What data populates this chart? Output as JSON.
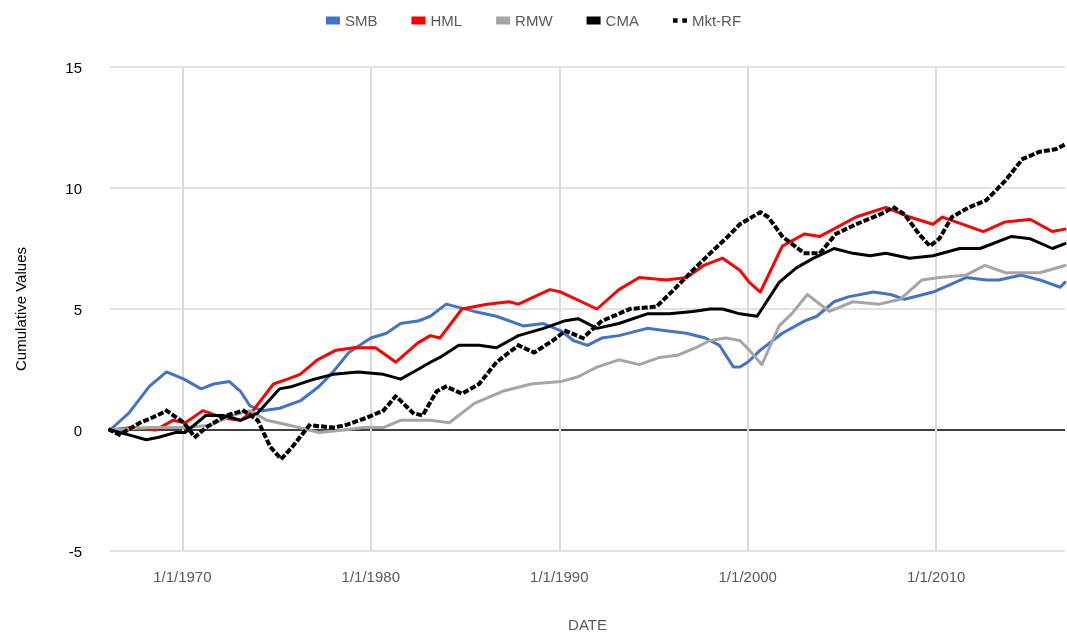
{
  "chart_data": {
    "type": "line",
    "xlabel": "DATE",
    "ylabel": "Cumulative Values",
    "xlim": [
      "1966-03",
      "2016-11"
    ],
    "xticks": [
      {
        "value": "1970-01-01",
        "label": "1/1/1970"
      },
      {
        "value": "1980-01-01",
        "label": "1/1/1980"
      },
      {
        "value": "1990-01-01",
        "label": "1/1/1990"
      },
      {
        "value": "2000-01-01",
        "label": "1/1/2000"
      },
      {
        "value": "2010-01-01",
        "label": "1/1/2010"
      }
    ],
    "ylim": [
      -5,
      15
    ],
    "yticks": [
      -5,
      0,
      5,
      10,
      15
    ],
    "grid": true,
    "legend": "top",
    "marker": "none",
    "series": [
      {
        "name": "SMB",
        "color": "#4472c4",
        "line_style": "solid",
        "x": [
          "1966-03",
          "1967-03",
          "1968-04",
          "1969-03",
          "1970-02",
          "1971-01",
          "1971-09",
          "1972-07",
          "1973-02",
          "1973-08",
          "1974-04",
          "1975-03",
          "1976-04",
          "1977-04",
          "1978-01",
          "1978-11",
          "1980-01",
          "1980-11",
          "1981-08",
          "1982-07",
          "1983-03",
          "1984-01",
          "1985-07",
          "1986-09",
          "1988-02",
          "1989-03",
          "1990-02",
          "1990-10",
          "1991-07",
          "1992-04",
          "1993-03",
          "1994-09",
          "1995-09",
          "1996-10",
          "1997-10",
          "1998-07",
          "1999-04",
          "1999-08",
          "2000-01",
          "2000-09",
          "2001-11",
          "2003-01",
          "2003-09",
          "2004-08",
          "2005-05",
          "2006-09",
          "2007-08",
          "2008-05",
          "2009-11",
          "2011-08",
          "2012-09",
          "2013-05",
          "2014-07",
          "2015-07",
          "2016-08",
          "2016-11"
        ],
        "values": [
          0,
          0.7,
          1.8,
          2.4,
          2.1,
          1.7,
          1.9,
          2.0,
          1.6,
          1.0,
          0.8,
          0.9,
          1.2,
          1.8,
          2.4,
          3.2,
          3.8,
          4.0,
          4.4,
          4.5,
          4.7,
          5.2,
          4.9,
          4.7,
          4.3,
          4.4,
          4.1,
          3.7,
          3.5,
          3.8,
          3.9,
          4.2,
          4.1,
          4.0,
          3.8,
          3.5,
          2.6,
          2.6,
          2.8,
          3.3,
          4.0,
          4.5,
          4.7,
          5.3,
          5.5,
          5.7,
          5.6,
          5.4,
          5.7,
          6.3,
          6.2,
          6.2,
          6.4,
          6.2,
          5.9,
          6.1
        ]
      },
      {
        "name": "HML",
        "color": "#ff0000",
        "line_style": "solid",
        "x": [
          "1966-03",
          "1967-05",
          "1968-08",
          "1969-07",
          "1970-03",
          "1971-02",
          "1972-03",
          "1973-02",
          "1973-10",
          "1974-11",
          "1975-08",
          "1976-04",
          "1977-03",
          "1978-03",
          "1979-02",
          "1980-04",
          "1981-05",
          "1982-07",
          "1983-03",
          "1983-09",
          "1984-11",
          "1986-03",
          "1987-05",
          "1987-11",
          "1989-07",
          "1990-02",
          "1992-01",
          "1993-03",
          "1994-04",
          "1995-09",
          "1996-10",
          "1997-09",
          "1998-09",
          "1999-08",
          "2000-02",
          "2000-09",
          "2001-11",
          "2003-01",
          "2003-11",
          "2005-10",
          "2007-05",
          "2008-08",
          "2009-11",
          "2010-05",
          "2012-07",
          "2013-09",
          "2015-01",
          "2016-03",
          "2016-11"
        ],
        "values": [
          0,
          0.1,
          0,
          0.4,
          0.3,
          0.8,
          0.5,
          0.4,
          0.8,
          1.9,
          2.1,
          2.3,
          2.9,
          3.3,
          3.4,
          3.4,
          2.8,
          3.6,
          3.9,
          3.8,
          5.0,
          5.2,
          5.3,
          5.2,
          5.8,
          5.7,
          5.0,
          5.8,
          6.3,
          6.2,
          6.3,
          6.8,
          7.1,
          6.6,
          6.1,
          5.7,
          7.6,
          8.1,
          8.0,
          8.8,
          9.2,
          8.8,
          8.5,
          8.8,
          8.2,
          8.6,
          8.7,
          8.2,
          8.3
        ]
      },
      {
        "name": "RMW",
        "color": "#a5a5a5",
        "line_style": "solid",
        "x": [
          "1966-03",
          "1968-04",
          "1970-02",
          "1971-07",
          "1972-09",
          "1973-08",
          "1974-07",
          "1975-09",
          "1977-04",
          "1978-08",
          "1979-08",
          "1980-09",
          "1981-08",
          "1983-03",
          "1984-03",
          "1985-07",
          "1987-01",
          "1988-07",
          "1990-02",
          "1991-01",
          "1992-01",
          "1993-03",
          "1994-04",
          "1995-05",
          "1996-05",
          "1997-04",
          "1998-01",
          "1998-11",
          "1999-08",
          "2000-02",
          "2000-10",
          "2001-09",
          "2002-05",
          "2003-03",
          "2004-05",
          "2005-08",
          "2007-01",
          "2008-02",
          "2009-04",
          "2010-03",
          "2011-08",
          "2012-08",
          "2013-09",
          "2015-07",
          "2016-11"
        ],
        "values": [
          0,
          0.1,
          0.1,
          0.2,
          0.6,
          0.8,
          0.4,
          0.2,
          -0.1,
          0,
          0.1,
          0.1,
          0.4,
          0.4,
          0.3,
          1.1,
          1.6,
          1.9,
          2.0,
          2.2,
          2.6,
          2.9,
          2.7,
          3.0,
          3.1,
          3.4,
          3.7,
          3.8,
          3.7,
          3.3,
          2.7,
          4.3,
          4.8,
          5.6,
          4.9,
          5.3,
          5.2,
          5.4,
          6.2,
          6.3,
          6.4,
          6.8,
          6.5,
          6.5,
          6.8
        ]
      },
      {
        "name": "CMA",
        "color": "#000000",
        "line_style": "solid",
        "x": [
          "1966-03",
          "1967-03",
          "1968-02",
          "1968-10",
          "1969-09",
          "1970-03",
          "1971-04",
          "1972-03",
          "1973-02",
          "1974-01",
          "1975-03",
          "1975-11",
          "1977-01",
          "1978-01",
          "1979-05",
          "1980-09",
          "1981-08",
          "1982-07",
          "1983-03",
          "1983-09",
          "1984-09",
          "1985-10",
          "1986-09",
          "1987-11",
          "1989-03",
          "1990-04",
          "1991-01",
          "1992-01",
          "1993-03",
          "1994-09",
          "1995-11",
          "1997-02",
          "1998-01",
          "1998-09",
          "1999-08",
          "2000-07",
          "2001-09",
          "2002-08",
          "2003-07",
          "2004-08",
          "2005-08",
          "2006-07",
          "2007-05",
          "2008-08",
          "2009-11",
          "2011-04",
          "2012-05",
          "2014-01",
          "2015-01",
          "2016-03",
          "2016-11"
        ],
        "values": [
          0,
          -0.2,
          -0.4,
          -0.3,
          -0.1,
          -0.1,
          0.6,
          0.6,
          0.4,
          0.7,
          1.7,
          1.8,
          2.1,
          2.3,
          2.4,
          2.3,
          2.1,
          2.5,
          2.8,
          3.0,
          3.5,
          3.5,
          3.4,
          3.9,
          4.2,
          4.5,
          4.6,
          4.2,
          4.4,
          4.8,
          4.8,
          4.9,
          5.0,
          5.0,
          4.8,
          4.7,
          6.1,
          6.7,
          7.1,
          7.5,
          7.3,
          7.2,
          7.3,
          7.1,
          7.2,
          7.5,
          7.5,
          8.0,
          7.9,
          7.5,
          7.7
        ]
      },
      {
        "name": "Mkt-RF",
        "color": "#000000",
        "line_style": "dotted",
        "x": [
          "1966-03",
          "1966-09",
          "1967-10",
          "1968-09",
          "1969-03",
          "1970-02",
          "1970-09",
          "1971-04",
          "1972-05",
          "1973-04",
          "1974-01",
          "1974-09",
          "1975-04",
          "1975-11",
          "1976-10",
          "1978-01",
          "1978-09",
          "1979-10",
          "1980-09",
          "1981-05",
          "1982-04",
          "1982-10",
          "1983-07",
          "1984-01",
          "1984-11",
          "1985-10",
          "1986-09",
          "1987-11",
          "1988-09",
          "1989-09",
          "1990-05",
          "1991-04",
          "1992-04",
          "1993-10",
          "1995-03",
          "1996-02",
          "1997-02",
          "1998-01",
          "1999-02",
          "1999-08",
          "2000-09",
          "2001-02",
          "2001-11",
          "2003-01",
          "2003-11",
          "2004-09",
          "2005-10",
          "2007-01",
          "2007-10",
          "2008-05",
          "2009-02",
          "2009-09",
          "2010-03",
          "2010-11",
          "2011-10",
          "2012-09",
          "2013-09",
          "2014-08",
          "2015-07",
          "2016-05",
          "2016-11"
        ],
        "values": [
          0,
          -0.2,
          0.3,
          0.6,
          0.8,
          0.3,
          -0.3,
          0.1,
          0.6,
          0.8,
          0.4,
          -0.7,
          -1.2,
          -0.7,
          0.2,
          0.1,
          0.2,
          0.5,
          0.8,
          1.4,
          0.7,
          0.6,
          1.6,
          1.8,
          1.5,
          1.9,
          2.8,
          3.5,
          3.2,
          3.7,
          4.1,
          3.8,
          4.5,
          5.0,
          5.1,
          5.8,
          6.6,
          7.3,
          8.1,
          8.5,
          9.0,
          8.8,
          8.0,
          7.3,
          7.3,
          8.1,
          8.5,
          8.9,
          9.2,
          8.9,
          8.1,
          7.6,
          7.9,
          8.8,
          9.2,
          9.5,
          10.3,
          11.2,
          11.5,
          11.6,
          11.8
        ]
      }
    ]
  }
}
